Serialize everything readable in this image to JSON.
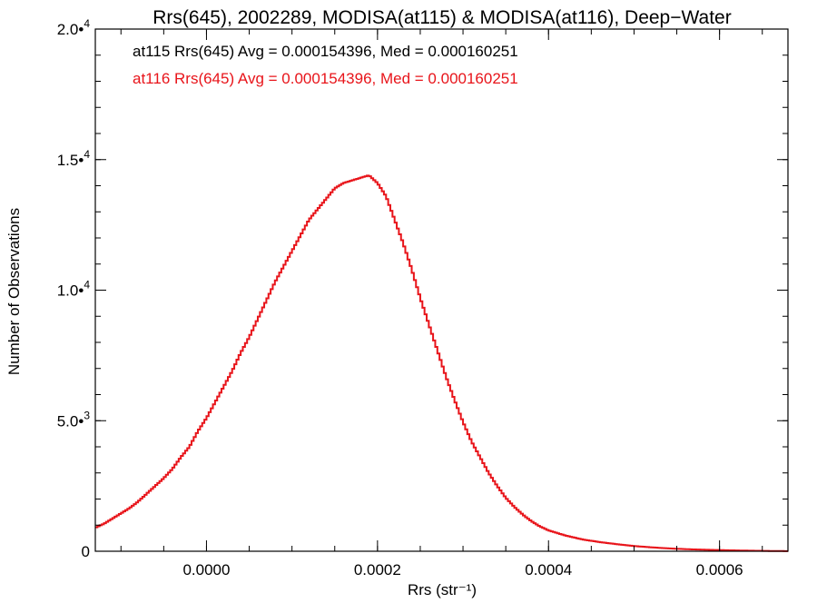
{
  "chart_data": {
    "type": "line",
    "step": true,
    "title": "Rrs(645), 2002289, MODISA(at115) & MODISA(at116), Deep−Water",
    "xlabel": "Rrs (str⁻¹)",
    "ylabel": "Number of Observations",
    "xlim": [
      -0.00013,
      0.00068
    ],
    "ylim": [
      0,
      20000
    ],
    "grid": false,
    "x_ticks": [
      {
        "value": 0.0,
        "label": "0.0000"
      },
      {
        "value": 0.0002,
        "label": "0.0002"
      },
      {
        "value": 0.0004,
        "label": "0.0004"
      },
      {
        "value": 0.0006,
        "label": "0.0006"
      }
    ],
    "x_minor_step": 5e-05,
    "y_ticks": [
      {
        "value": 0,
        "mant": "0",
        "exp": ""
      },
      {
        "value": 5000,
        "mant": "5.0•",
        "exp": "3"
      },
      {
        "value": 10000,
        "mant": "1.0•",
        "exp": "4"
      },
      {
        "value": 15000,
        "mant": "1.5•",
        "exp": "4"
      },
      {
        "value": 20000,
        "mant": "2.0•",
        "exp": "4"
      }
    ],
    "y_minor_step": 1000,
    "annotations": [
      {
        "text": "at115 Rrs(645) Avg = 0.000154396, Med = 0.000160251",
        "color": "#000000"
      },
      {
        "text": "at116 Rrs(645) Avg = 0.000154396, Med = 0.000160251",
        "color": "#e8141a"
      }
    ],
    "series": [
      {
        "color": "#e8141a",
        "x": [
          -0.00013,
          -0.00012,
          -0.00011,
          -0.0001,
          -9e-05,
          -8e-05,
          -7e-05,
          -6e-05,
          -5e-05,
          -4e-05,
          -3e-05,
          -2e-05,
          -1e-05,
          0.0,
          1e-05,
          2e-05,
          3e-05,
          4e-05,
          5e-05,
          6e-05,
          7e-05,
          8e-05,
          9e-05,
          0.0001,
          0.00011,
          0.00012,
          0.00013,
          0.00014,
          0.00015,
          0.00016,
          0.00017,
          0.00018,
          0.00019,
          0.0002,
          0.00021,
          0.00022,
          0.00023,
          0.00024,
          0.00025,
          0.00026,
          0.00027,
          0.00028,
          0.00029,
          0.0003,
          0.00031,
          0.00032,
          0.00033,
          0.00034,
          0.00035,
          0.00036,
          0.00037,
          0.00038,
          0.00039,
          0.0004,
          0.00042,
          0.00044,
          0.00046,
          0.00048,
          0.0005,
          0.00052,
          0.00054,
          0.00056,
          0.00058,
          0.0006,
          0.00062,
          0.00064,
          0.00066,
          0.00068
        ],
        "y": [
          900,
          1050,
          1250,
          1450,
          1650,
          1900,
          2200,
          2500,
          2800,
          3150,
          3600,
          4000,
          4600,
          5100,
          5700,
          6300,
          6900,
          7600,
          8200,
          8900,
          9600,
          10300,
          10900,
          11500,
          12100,
          12700,
          13100,
          13500,
          13900,
          14100,
          14200,
          14300,
          14400,
          14100,
          13600,
          12700,
          11800,
          10800,
          9700,
          8700,
          7700,
          6700,
          5800,
          4950,
          4200,
          3600,
          3000,
          2500,
          2050,
          1700,
          1400,
          1150,
          950,
          800,
          600,
          450,
          350,
          270,
          200,
          150,
          110,
          80,
          60,
          45,
          30,
          20,
          10,
          5
        ]
      }
    ]
  }
}
